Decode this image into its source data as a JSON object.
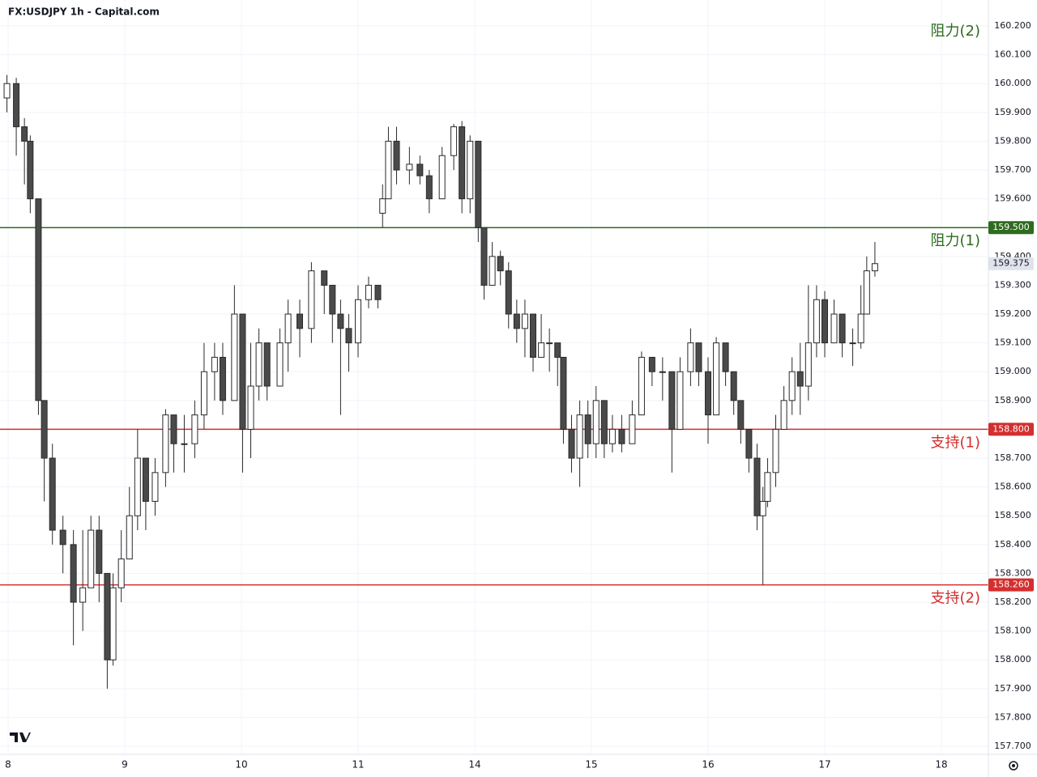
{
  "chart_data": {
    "type": "candlestick",
    "title": "FX:USDJPY 1h - Capital.com",
    "xlim": [
      -0.0694,
      8.4028
    ],
    "ylim": [
      157.672,
      160.29
    ],
    "xticks": [
      {
        "value": 0,
        "label": "8"
      },
      {
        "value": 1,
        "label": "9"
      },
      {
        "value": 2,
        "label": "10"
      },
      {
        "value": 3,
        "label": "11"
      },
      {
        "value": 4,
        "label": "14"
      },
      {
        "value": 5,
        "label": "15"
      },
      {
        "value": 6,
        "label": "16"
      },
      {
        "value": 7,
        "label": "17"
      },
      {
        "value": 8,
        "label": "18"
      }
    ],
    "yticks": [
      {
        "value": 160.2,
        "label": "160.200"
      },
      {
        "value": 160.1,
        "label": "160.100"
      },
      {
        "value": 160.0,
        "label": "160.000"
      },
      {
        "value": 159.9,
        "label": "159.900"
      },
      {
        "value": 159.8,
        "label": "159.800"
      },
      {
        "value": 159.7,
        "label": "159.700"
      },
      {
        "value": 159.6,
        "label": "159.600"
      },
      {
        "value": 159.4,
        "label": "159.400"
      },
      {
        "value": 159.3,
        "label": "159.300"
      },
      {
        "value": 159.2,
        "label": "159.200"
      },
      {
        "value": 159.1,
        "label": "159.100"
      },
      {
        "value": 159.0,
        "label": "159.000"
      },
      {
        "value": 158.9,
        "label": "158.900"
      },
      {
        "value": 158.7,
        "label": "158.700"
      },
      {
        "value": 158.6,
        "label": "158.600"
      },
      {
        "value": 158.5,
        "label": "158.500"
      },
      {
        "value": 158.4,
        "label": "158.400"
      },
      {
        "value": 158.3,
        "label": "158.300"
      },
      {
        "value": 158.2,
        "label": "158.200"
      },
      {
        "value": 158.1,
        "label": "158.100"
      },
      {
        "value": 158.0,
        "label": "158.000"
      },
      {
        "value": 157.9,
        "label": "157.900"
      },
      {
        "value": 157.8,
        "label": "157.800"
      },
      {
        "value": 157.7,
        "label": "157.700"
      }
    ],
    "grid": true,
    "up_color": "#ffffff",
    "down_color": "#4a4a4a",
    "wick_color": "#2a2a2a",
    "x": [
      -0.01,
      0.07,
      0.14,
      0.19,
      0.26,
      0.31,
      0.38,
      0.47,
      0.56,
      0.64,
      0.71,
      0.78,
      0.85,
      0.9,
      0.97,
      1.04,
      1.11,
      1.18,
      1.26,
      1.35,
      1.42,
      1.51,
      1.6,
      1.68,
      1.77,
      1.84,
      1.94,
      2.01,
      2.08,
      2.15,
      2.22,
      2.33,
      2.4,
      2.5,
      2.6,
      2.71,
      2.78,
      2.85,
      2.92,
      3.0,
      3.09,
      3.17,
      3.21,
      3.26,
      3.33,
      3.44,
      3.53,
      3.61,
      3.72,
      3.82,
      3.89,
      3.96,
      4.03,
      4.08,
      4.15,
      4.22,
      4.29,
      4.36,
      4.43,
      4.5,
      4.57,
      4.64,
      4.71,
      4.76,
      4.83,
      4.9,
      4.97,
      5.04,
      5.11,
      5.18,
      5.26,
      5.35,
      5.43,
      5.52,
      5.61,
      5.69,
      5.76,
      5.85,
      5.92,
      6.0,
      6.07,
      6.15,
      6.22,
      6.28,
      6.35,
      6.42,
      6.47,
      6.51,
      6.58,
      6.65,
      6.72,
      6.79,
      6.86,
      6.93,
      7.0,
      7.08,
      7.15,
      7.24,
      7.31,
      7.36,
      7.43
    ],
    "open": [
      159.95,
      160.0,
      159.85,
      159.8,
      159.6,
      158.9,
      158.7,
      158.45,
      158.4,
      158.2,
      158.25,
      158.45,
      158.3,
      158.0,
      158.25,
      158.35,
      158.5,
      158.7,
      158.55,
      158.65,
      158.85,
      158.75,
      158.75,
      158.85,
      159.0,
      159.05,
      158.9,
      159.2,
      158.8,
      158.95,
      159.1,
      158.95,
      159.1,
      159.2,
      159.15,
      159.35,
      159.3,
      159.2,
      159.15,
      159.1,
      159.25,
      159.3,
      159.55,
      159.6,
      159.8,
      159.7,
      159.72,
      159.68,
      159.6,
      159.75,
      159.85,
      159.6,
      159.8,
      159.5,
      159.3,
      159.4,
      159.35,
      159.2,
      159.15,
      159.2,
      159.05,
      159.1,
      159.1,
      159.05,
      158.8,
      158.7,
      158.85,
      158.75,
      158.9,
      158.75,
      158.8,
      158.75,
      158.85,
      159.05,
      159.0,
      159.0,
      158.8,
      159.0,
      159.1,
      159.0,
      158.85,
      159.1,
      159.0,
      158.9,
      158.8,
      158.7,
      158.5,
      158.55,
      158.65,
      158.8,
      158.9,
      159.0,
      158.95,
      159.1,
      159.25,
      159.1,
      159.2,
      159.1,
      159.1,
      159.2,
      159.35
    ],
    "high": [
      160.03,
      160.02,
      159.88,
      159.82,
      159.6,
      158.9,
      158.75,
      158.5,
      158.45,
      158.45,
      158.5,
      158.5,
      158.3,
      158.3,
      158.45,
      158.6,
      158.8,
      158.7,
      158.7,
      158.87,
      158.85,
      158.85,
      158.9,
      159.1,
      159.1,
      159.1,
      159.3,
      159.2,
      159.1,
      159.15,
      159.1,
      159.15,
      159.25,
      159.25,
      159.38,
      159.35,
      159.3,
      159.25,
      159.2,
      159.3,
      159.33,
      159.3,
      159.65,
      159.85,
      159.85,
      159.78,
      159.75,
      159.7,
      159.78,
      159.86,
      159.87,
      159.82,
      159.8,
      159.5,
      159.45,
      159.42,
      159.38,
      159.25,
      159.25,
      159.2,
      159.2,
      159.15,
      159.1,
      159.05,
      158.85,
      158.9,
      158.9,
      158.95,
      158.9,
      158.85,
      158.85,
      158.9,
      159.07,
      159.05,
      159.05,
      159.0,
      159.05,
      159.15,
      159.1,
      159.05,
      159.12,
      159.1,
      159.0,
      158.9,
      158.8,
      158.75,
      158.6,
      158.7,
      158.85,
      158.95,
      159.05,
      159.1,
      159.3,
      159.3,
      159.28,
      159.25,
      159.2,
      159.15,
      159.3,
      159.4,
      159.45
    ],
    "low": [
      159.9,
      159.75,
      159.65,
      159.55,
      158.85,
      158.55,
      158.4,
      158.3,
      158.05,
      158.1,
      158.25,
      158.2,
      157.9,
      157.98,
      158.2,
      158.35,
      158.45,
      158.45,
      158.5,
      158.6,
      158.65,
      158.65,
      158.7,
      158.8,
      158.9,
      158.85,
      158.9,
      158.65,
      158.7,
      158.9,
      158.9,
      158.95,
      159.0,
      159.05,
      159.1,
      159.2,
      159.1,
      158.85,
      159.0,
      159.05,
      159.22,
      159.22,
      159.5,
      159.6,
      159.65,
      159.65,
      159.65,
      159.55,
      159.6,
      159.7,
      159.55,
      159.55,
      159.45,
      159.25,
      159.3,
      159.3,
      159.15,
      159.1,
      159.05,
      159.0,
      159.05,
      159.0,
      158.95,
      158.75,
      158.65,
      158.6,
      158.7,
      158.7,
      158.7,
      158.72,
      158.72,
      158.75,
      158.85,
      158.95,
      158.9,
      158.65,
      158.8,
      158.95,
      158.95,
      158.75,
      158.85,
      158.95,
      158.85,
      158.75,
      158.65,
      158.45,
      158.26,
      158.53,
      158.6,
      158.8,
      158.85,
      158.85,
      158.9,
      159.05,
      159.05,
      159.1,
      159.05,
      159.02,
      159.08,
      159.2,
      159.33
    ],
    "close": [
      160.0,
      159.85,
      159.8,
      159.6,
      158.9,
      158.7,
      158.45,
      158.4,
      158.2,
      158.25,
      158.45,
      158.3,
      158.0,
      158.25,
      158.35,
      158.5,
      158.7,
      158.55,
      158.65,
      158.85,
      158.75,
      158.75,
      158.85,
      159.0,
      159.05,
      158.9,
      159.2,
      158.8,
      158.95,
      159.1,
      158.95,
      159.1,
      159.2,
      159.15,
      159.35,
      159.3,
      159.2,
      159.15,
      159.1,
      159.25,
      159.3,
      159.25,
      159.6,
      159.8,
      159.7,
      159.72,
      159.68,
      159.6,
      159.75,
      159.85,
      159.6,
      159.8,
      159.5,
      159.3,
      159.4,
      159.35,
      159.2,
      159.15,
      159.2,
      159.05,
      159.1,
      159.1,
      159.05,
      158.8,
      158.7,
      158.85,
      158.75,
      158.9,
      158.75,
      158.8,
      158.75,
      158.85,
      159.05,
      159.0,
      159.0,
      158.8,
      159.0,
      159.1,
      159.0,
      158.85,
      159.1,
      159.0,
      158.9,
      158.8,
      158.7,
      158.5,
      158.55,
      158.65,
      158.8,
      158.9,
      159.0,
      158.95,
      159.1,
      159.25,
      159.1,
      159.2,
      159.1,
      159.1,
      159.2,
      159.35,
      159.375
    ],
    "last_price": {
      "value": 159.375,
      "label": "159.375",
      "color": "#e0e3eb"
    },
    "levels": [
      {
        "value": 159.5,
        "label": "159.500",
        "name": "阻力(1)",
        "color": "#2e6b1f"
      },
      {
        "value": 158.8,
        "label": "158.800",
        "name": "支持(1)",
        "color": "#d32f2f"
      },
      {
        "value": 158.26,
        "label": "158.260",
        "name": "支持(2)",
        "color": "#d32f2f"
      }
    ],
    "annotations": [
      {
        "text": "阻力(2)",
        "color": "#2e6b1f"
      }
    ]
  }
}
